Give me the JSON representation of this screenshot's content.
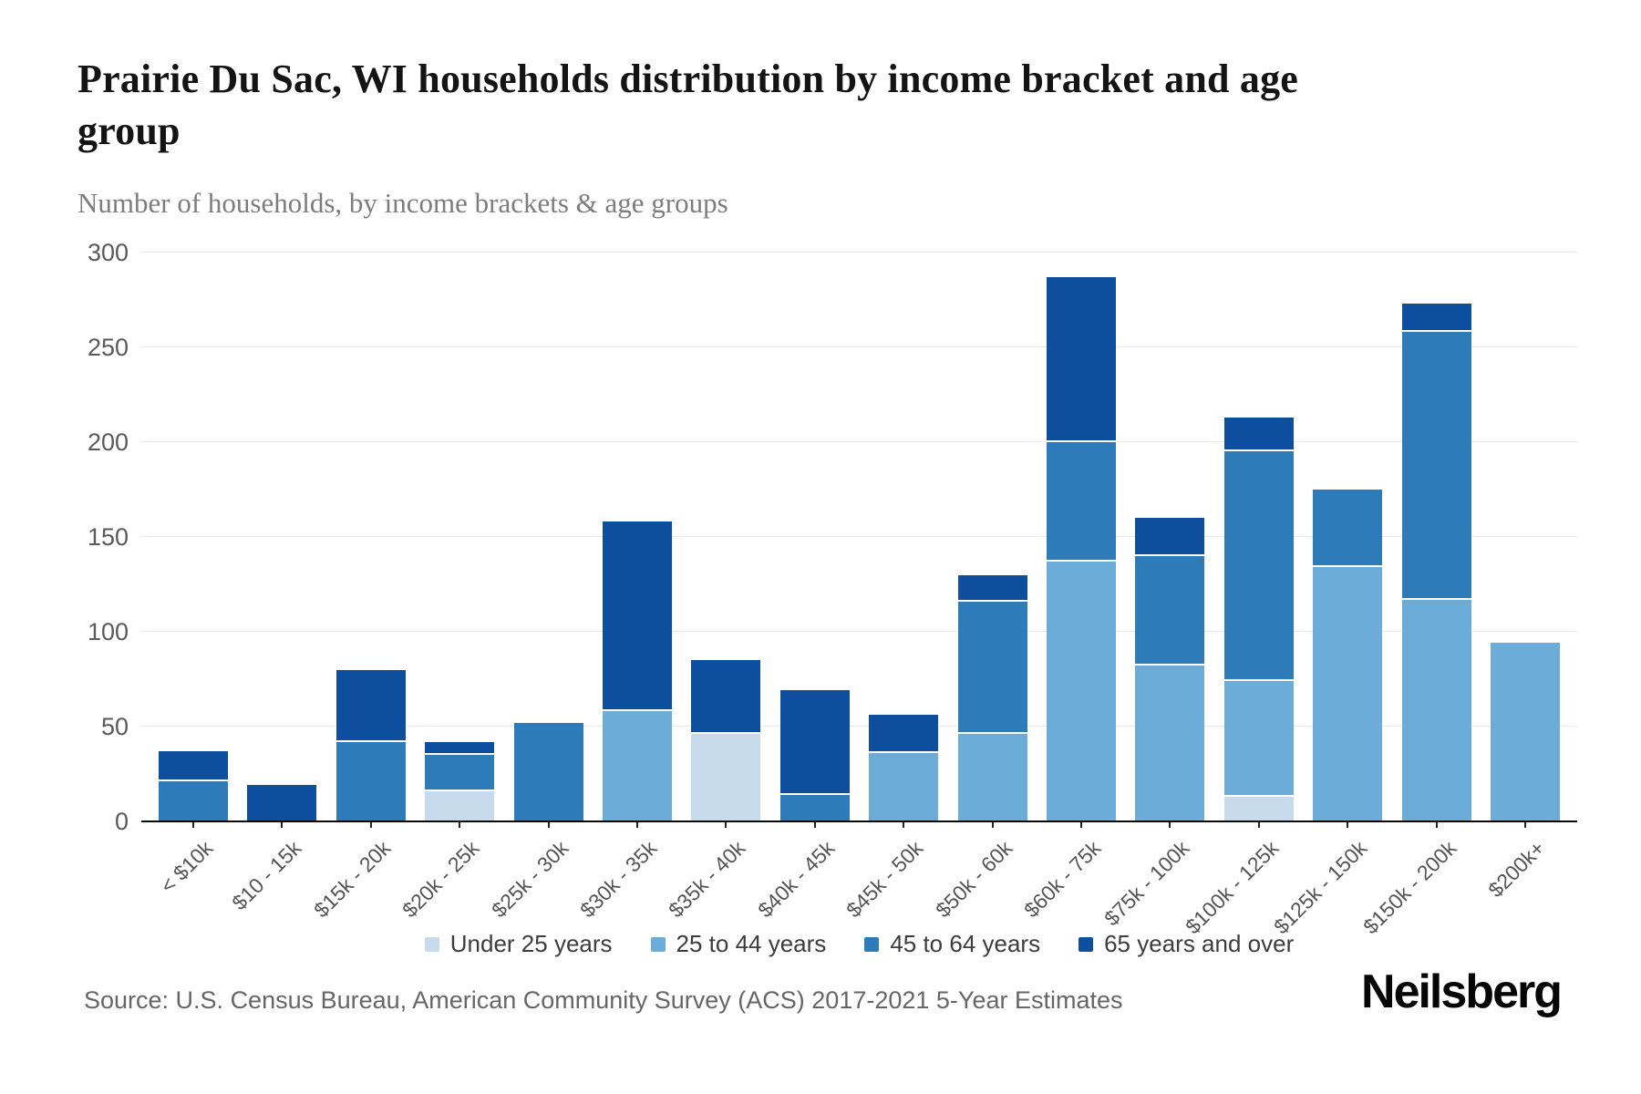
{
  "page": {
    "title": "Prairie Du Sac, WI households distribution by income bracket and age group",
    "subtitle": "Number of households, by income brackets & age groups",
    "source": "Source: U.S. Census Bureau, American Community Survey (ACS) 2017-2021 5-Year Estimates",
    "brand": "Neilsberg"
  },
  "colors": {
    "under_25": "#c8dbec",
    "age_25_44": "#6bacd8",
    "age_45_64": "#2d7bb8",
    "age_65_plus": "#0d4f9e",
    "grid": "#ebebeb",
    "axis": "#0a0a0a",
    "tick_text": "#555555",
    "subtitle_text": "#7d7d7d",
    "source_text": "#666666"
  },
  "chart_data": {
    "type": "bar",
    "stacked": true,
    "title": "Prairie Du Sac, WI households distribution by income bracket and age group",
    "subtitle": "Number of households, by income brackets & age groups",
    "xlabel": "",
    "ylabel": "Number of households",
    "ylim": [
      0,
      300
    ],
    "yticks": [
      0,
      50,
      100,
      150,
      200,
      250,
      300
    ],
    "grid": true,
    "legend_position": "bottom",
    "categories": [
      "< $10k",
      "$10 - 15k",
      "$15k - 20k",
      "$20k - 25k",
      "$25k - 30k",
      "$30k - 35k",
      "$35k - 40k",
      "$40k - 45k",
      "$45k - 50k",
      "$50k - 60k",
      "$60k - 75k",
      "$75k - 100k",
      "$100k - 125k",
      "$125k - 150k",
      "$150k - 200k",
      "$200k+"
    ],
    "series": [
      {
        "name": "Under 25 years",
        "color": "#c8dbec",
        "values": [
          0,
          0,
          0,
          17,
          0,
          0,
          47,
          0,
          0,
          0,
          0,
          0,
          14,
          0,
          0,
          0
        ]
      },
      {
        "name": "25 to 44 years",
        "color": "#6bacd8",
        "values": [
          0,
          0,
          0,
          0,
          0,
          59,
          0,
          0,
          37,
          47,
          138,
          83,
          61,
          135,
          118,
          95
        ]
      },
      {
        "name": "45 to 64 years",
        "color": "#2d7bb8",
        "values": [
          22,
          0,
          43,
          19,
          53,
          0,
          0,
          15,
          0,
          70,
          63,
          58,
          121,
          41,
          141,
          0
        ]
      },
      {
        "name": "65 years and over",
        "color": "#0d4f9e",
        "values": [
          16,
          20,
          38,
          7,
          0,
          100,
          39,
          55,
          20,
          14,
          87,
          20,
          18,
          0,
          15,
          0
        ]
      }
    ],
    "totals": [
      38,
      20,
      81,
      43,
      53,
      159,
      86,
      70,
      57,
      131,
      288,
      161,
      214,
      176,
      274,
      95
    ]
  }
}
